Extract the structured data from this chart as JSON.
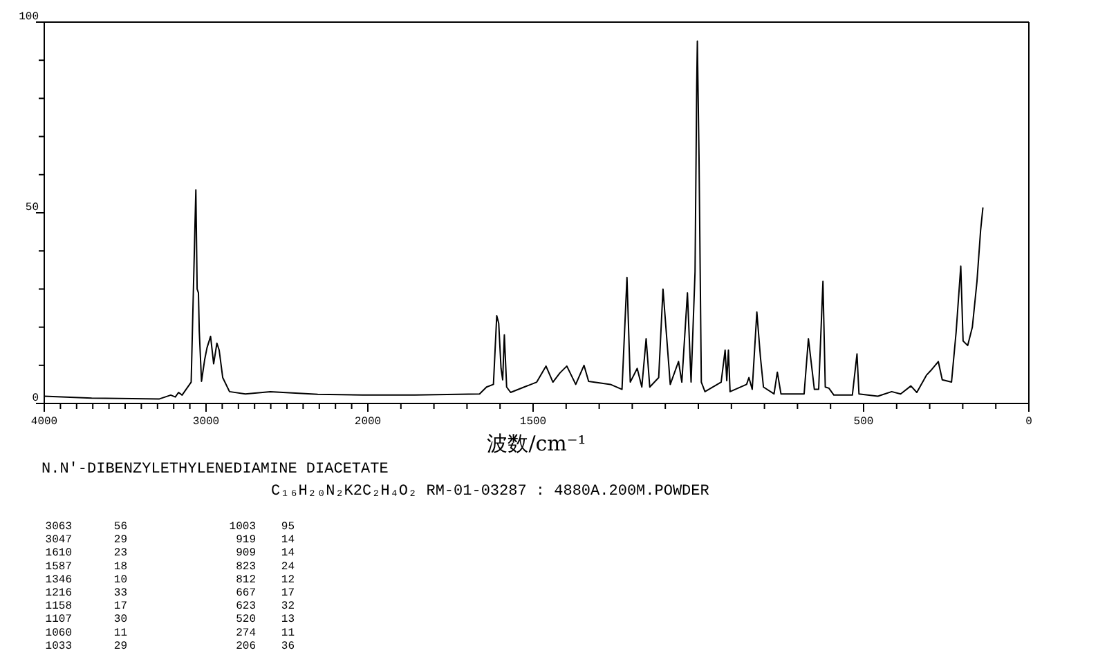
{
  "chart_data": [
    {
      "type": "line",
      "title": "N.N'-DIBENZYLETHYLENEDIAMINE DIACETATE",
      "subtitle": "C₁₆H₂₀N₂K2C₂H₄O₂  RM-01-03287 : 4880A.200M.POWDER",
      "annotations": [
        "3063",
        "56",
        "1003",
        "95",
        "3047",
        "29",
        "919",
        "14",
        "1610",
        "23",
        "909",
        "14",
        "1587",
        "18",
        "823",
        "24",
        "1346",
        "10",
        "812",
        "12",
        "1216",
        "33",
        "667",
        "17",
        "1158",
        "17",
        "623",
        "32",
        "1107",
        "30",
        "520",
        "13",
        "1060",
        "11",
        "274",
        "11",
        "1033",
        "29",
        "206",
        "36"
      ],
      "xlim": [
        4000,
        2000
      ],
      "ylim": [
        0,
        100
      ],
      "xticks": [
        4000,
        {
          "value": 3900,
          "label": null
        },
        {
          "value": 3800,
          "label": null
        },
        {
          "value": 3700,
          "label": null
        },
        {
          "value": 3600,
          "label": null
        },
        {
          "value": 3500,
          "label": null
        },
        {
          "value": 3400,
          "label": null
        },
        {
          "value": 3300,
          "label": null
        },
        {
          "value": 3200,
          "label": null
        },
        {
          "value": 3100,
          "label": null
        },
        3000,
        {
          "value": 2900,
          "label": null
        },
        {
          "value": 2800,
          "label": null
        },
        {
          "value": 2700,
          "label": null
        },
        {
          "value": 2600,
          "label": null
        },
        {
          "value": 2500,
          "label": null
        },
        {
          "value": 2400,
          "label": null
        },
        {
          "value": 2300,
          "label": null
        },
        {
          "value": 2200,
          "label": null
        },
        {
          "value": 2100,
          "label": null
        },
        2000
      ],
      "yticks": [
        0,
        {
          "value": 10,
          "label": null
        },
        {
          "value": 20,
          "label": null
        },
        {
          "value": 30,
          "label": null
        },
        {
          "value": 40,
          "label": null
        },
        50,
        {
          "value": 60,
          "label": null
        },
        {
          "value": 70,
          "label": null
        },
        {
          "value": 80,
          "label": null
        },
        {
          "value": 90,
          "label": null
        },
        100
      ],
      "series": [
        {
          "color": "#000000",
          "x": [
            4000,
            3707,
            3288,
            3218,
            3190,
            3170,
            3148,
            3092,
            3070,
            3063,
            3055,
            3047,
            3042,
            3028,
            3008,
            2994,
            2972,
            2953,
            2933,
            2919,
            2897,
            2855,
            2757,
            2603,
            2310,
            2031,
            2000
          ],
          "values": [
            1.9,
            1.4,
            1.2,
            2.2,
            1.7,
            2.9,
            2.2,
            5.6,
            44,
            56,
            30,
            29,
            19,
            5.8,
            11.6,
            14.6,
            17.6,
            10.4,
            15.8,
            14,
            6.8,
            3.1,
            2.5,
            3.1,
            2.4,
            2.2,
            2.2
          ]
        }
      ]
    },
    {
      "type": "line",
      "xlabel": "波数/cm⁻¹",
      "xlim": [
        2000,
        0
      ],
      "ylim": [
        0,
        100
      ],
      "tick_labels": "x",
      "xticks": [
        {
          "value": 1900,
          "label": null
        },
        {
          "value": 1800,
          "label": null
        },
        {
          "value": 1700,
          "label": null
        },
        {
          "value": 1600,
          "label": null
        },
        1500,
        {
          "value": 1400,
          "label": null
        },
        {
          "value": 1300,
          "label": null
        },
        {
          "value": 1200,
          "label": null
        },
        {
          "value": 1100,
          "label": null
        },
        {
          "value": 1000,
          "label": null
        },
        {
          "value": 900,
          "label": null
        },
        {
          "value": 800,
          "label": null
        },
        {
          "value": 700,
          "label": null
        },
        {
          "value": 600,
          "label": null
        },
        500,
        {
          "value": 400,
          "label": null
        },
        {
          "value": 300,
          "label": null
        },
        {
          "value": 200,
          "label": null
        },
        {
          "value": 100,
          "label": null
        },
        0
      ],
      "series": [
        {
          "color": "#000000",
          "x": [
            2000,
            1858,
            1662,
            1641,
            1620,
            1610,
            1604,
            1597,
            1592,
            1587,
            1580,
            1568,
            1489,
            1461,
            1440,
            1419,
            1398,
            1371,
            1346,
            1332,
            1266,
            1231,
            1216,
            1206,
            1185,
            1171,
            1158,
            1147,
            1120,
            1107,
            1085,
            1060,
            1050,
            1033,
            1022,
            1010,
            1005,
            1003,
            998,
            991,
            980,
            931,
            919,
            914,
            909,
            904,
            854,
            847,
            837,
            823,
            812,
            803,
            771,
            761,
            750,
            680,
            667,
            649,
            636,
            623,
            616,
            605,
            590,
            534,
            520,
            514,
            457,
            415,
            388,
            357,
            339,
            310,
            297,
            274,
            262,
            234,
            220,
            206,
            199,
            185,
            171,
            157,
            146,
            139
          ],
          "values": [
            2.2,
            2.2,
            2.5,
            4.3,
            5,
            23,
            21,
            9.2,
            6.2,
            18,
            4.3,
            2.9,
            5.6,
            9.8,
            5.6,
            8,
            9.8,
            5,
            10,
            5.8,
            5,
            3.7,
            33,
            5.6,
            9.2,
            4.3,
            17,
            4.3,
            6.8,
            30,
            5,
            11,
            5.6,
            29,
            5.6,
            34.5,
            83,
            95,
            64.7,
            5.6,
            3.1,
            5.6,
            14,
            6,
            14,
            3.1,
            5,
            6.8,
            3.7,
            24,
            12,
            4.3,
            2.5,
            8.2,
            2.5,
            2.5,
            17,
            3.7,
            3.7,
            32,
            4.3,
            4,
            2.2,
            2.2,
            13,
            2.5,
            1.9,
            3.1,
            2.5,
            4.6,
            2.9,
            7.4,
            8.6,
            11,
            6.2,
            5.6,
            18.8,
            36,
            16.4,
            15.2,
            20,
            32,
            45.4,
            51.4
          ]
        }
      ]
    }
  ]
}
